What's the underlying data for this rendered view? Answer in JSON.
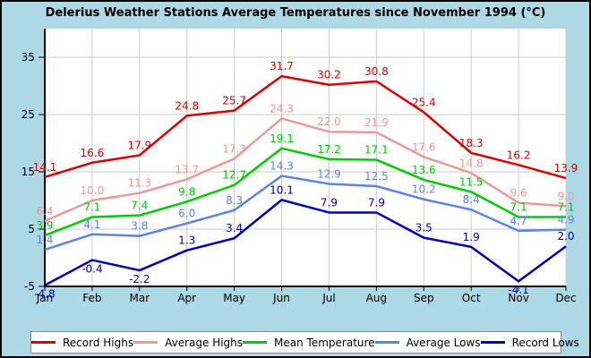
{
  "window": {
    "title": "Delerius Weather Stations Average Temperatures since November 1994 (°C)"
  },
  "chart_data": {
    "type": "line",
    "title": "Delerius Weather Stations Average Temperatures since November 1994 (°C)",
    "categories": [
      "Jan",
      "Feb",
      "Mar",
      "Apr",
      "May",
      "Jun",
      "Jul",
      "Aug",
      "Sep",
      "Oct",
      "Nov",
      "Dec"
    ],
    "ylim": [
      -5,
      40
    ],
    "y_ticks": [
      -5,
      5,
      15,
      25,
      35
    ],
    "grid": true,
    "legend_position": "bottom",
    "value_decimals": 1,
    "series": [
      {
        "name": "Record Highs",
        "color": "#dd0000",
        "values": [
          14.1,
          16.6,
          17.9,
          24.8,
          25.7,
          31.7,
          30.2,
          30.8,
          25.4,
          18.3,
          16.2,
          13.9
        ]
      },
      {
        "name": "Average Highs",
        "color": "#ee9999",
        "values": [
          6.4,
          10.0,
          11.3,
          13.7,
          17.3,
          24.3,
          22.0,
          21.9,
          17.6,
          14.8,
          9.6,
          9.0
        ]
      },
      {
        "name": "Mean Temperature",
        "color": "#00cc00",
        "values": [
          3.9,
          7.1,
          7.4,
          9.8,
          12.7,
          19.1,
          17.2,
          17.1,
          13.6,
          11.5,
          7.1,
          7.1
        ]
      },
      {
        "name": "Average Lows",
        "color": "#5b84e3",
        "values": [
          1.4,
          4.1,
          3.8,
          6.0,
          8.3,
          14.3,
          12.9,
          12.5,
          10.2,
          8.4,
          4.7,
          4.9
        ]
      },
      {
        "name": "Record Lows",
        "color": "#0000bb",
        "values": [
          -4.8,
          -0.4,
          -2.2,
          1.3,
          3.4,
          10.1,
          7.9,
          7.9,
          3.5,
          1.9,
          -4.1,
          2.0
        ]
      }
    ],
    "colors": {
      "background": "#add8e6",
      "plot_background": "#ffffff",
      "gridline": "#cccccc",
      "axis": "#000000",
      "legend_border": "#8a8a8a"
    }
  }
}
